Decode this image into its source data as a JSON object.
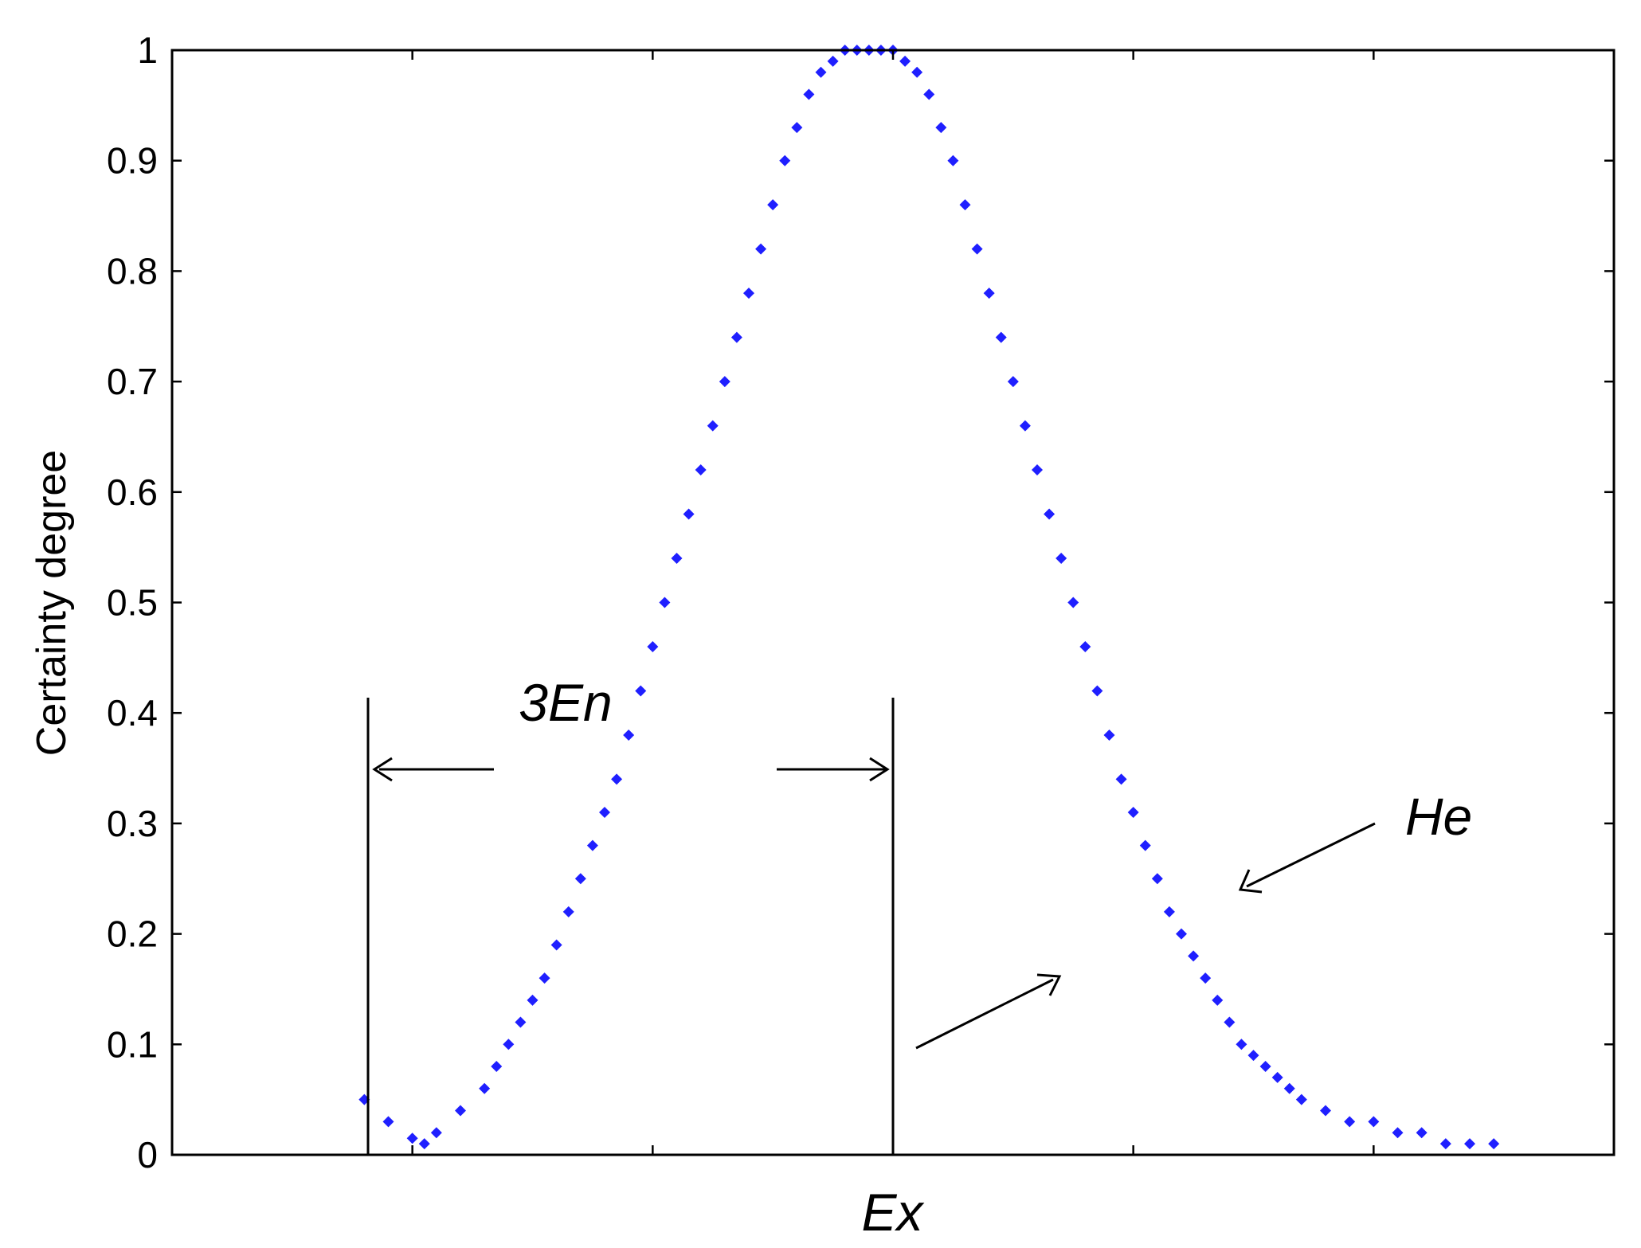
{
  "chart_data": {
    "type": "scatter",
    "title": "",
    "xlabel": "Ex",
    "ylabel": "Certainty degree",
    "ylim": [
      0,
      1
    ],
    "yticks": [
      "0",
      "0.1",
      "0.2",
      "0.3",
      "0.4",
      "0.5",
      "0.6",
      "0.7",
      "0.8",
      "0.9",
      "1"
    ],
    "xticks": [],
    "grid": false,
    "marker": "diamond",
    "color": "#1f1fff",
    "series": [
      {
        "x": [
          -2.2,
          -2.1,
          -2.0,
          -1.95,
          -1.9,
          -1.8,
          -1.7,
          -1.65,
          -1.6,
          -1.55,
          -1.5,
          -1.45,
          -1.4,
          -1.35,
          -1.3,
          -1.25,
          -1.2,
          -1.15,
          -1.1,
          -1.05,
          -1.0,
          -0.95,
          -0.9,
          -0.85,
          -0.8,
          -0.75,
          -0.7,
          -0.65,
          -0.6,
          -0.55,
          -0.5,
          -0.45,
          -0.4,
          -0.35,
          -0.3,
          -0.25,
          -0.2,
          -0.15,
          -0.1,
          -0.05,
          0.0,
          0.05,
          0.1,
          0.15,
          0.2,
          0.25,
          0.3,
          0.35,
          0.4,
          0.45,
          0.5,
          0.55,
          0.6,
          0.65,
          0.7,
          0.75,
          0.8,
          0.85,
          0.9,
          0.95,
          1.0,
          1.05,
          1.1,
          1.15,
          1.2,
          1.25,
          1.3,
          1.35,
          1.4,
          1.45,
          1.5,
          1.55,
          1.6,
          1.65,
          1.7,
          1.8,
          1.9,
          2.0,
          2.1,
          2.2,
          2.3,
          2.4,
          2.5
        ],
        "y": [
          0.05,
          0.03,
          0.015,
          0.01,
          0.02,
          0.04,
          0.06,
          0.08,
          0.1,
          0.12,
          0.14,
          0.16,
          0.19,
          0.22,
          0.25,
          0.28,
          0.31,
          0.34,
          0.38,
          0.42,
          0.46,
          0.5,
          0.54,
          0.58,
          0.62,
          0.66,
          0.7,
          0.74,
          0.78,
          0.82,
          0.86,
          0.9,
          0.93,
          0.96,
          0.98,
          0.99,
          1.0,
          1.0,
          1.0,
          1.0,
          1.0,
          0.99,
          0.98,
          0.96,
          0.93,
          0.9,
          0.86,
          0.82,
          0.78,
          0.74,
          0.7,
          0.66,
          0.62,
          0.58,
          0.54,
          0.5,
          0.46,
          0.42,
          0.38,
          0.34,
          0.31,
          0.28,
          0.25,
          0.22,
          0.2,
          0.18,
          0.16,
          0.14,
          0.12,
          0.1,
          0.09,
          0.08,
          0.07,
          0.06,
          0.05,
          0.04,
          0.03,
          0.03,
          0.02,
          0.02,
          0.01,
          0.01,
          0.01
        ]
      }
    ],
    "annotations": {
      "span_label": "3En",
      "he_label": "He"
    }
  }
}
